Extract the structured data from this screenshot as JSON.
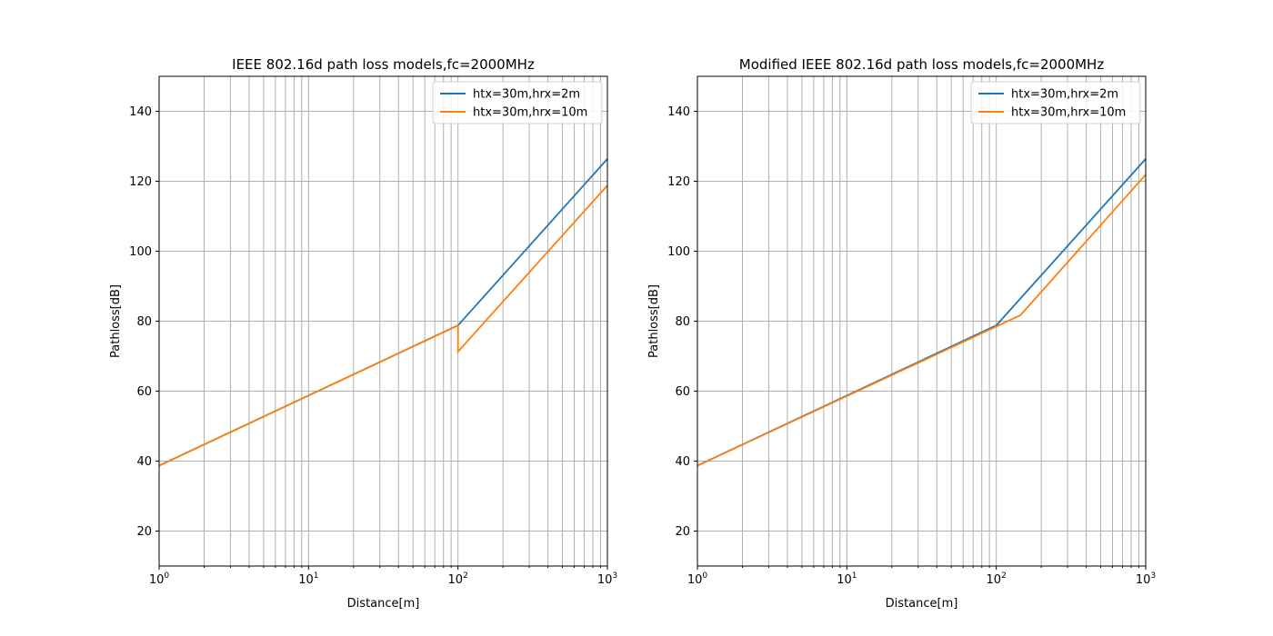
{
  "chart_data": [
    {
      "type": "line",
      "title": "IEEE 802.16d path loss models,fc=2000MHz",
      "xlabel": "Distance[m]",
      "ylabel": "Pathloss[dB]",
      "xscale": "log",
      "xlim": [
        1,
        1000
      ],
      "ylim": [
        10,
        150
      ],
      "xticks": [
        "10^0",
        "10^1",
        "10^2",
        "10^3"
      ],
      "yticks": [
        20,
        40,
        60,
        80,
        100,
        120,
        140
      ],
      "grid": true,
      "legend_position": "upper right",
      "series": [
        {
          "name": "htx=30m,hrx=2m",
          "color": "#1f77b4",
          "points": [
            [
              1,
              38.7
            ],
            [
              100,
              78.8
            ],
            [
              1000,
              126.4
            ]
          ]
        },
        {
          "name": "htx=30m,hrx=10m",
          "color": "#ff7f0e",
          "points": [
            [
              1,
              38.7
            ],
            [
              100,
              78.8
            ],
            [
              100,
              71.3
            ],
            [
              1000,
              118.8
            ]
          ]
        }
      ]
    },
    {
      "type": "line",
      "title": "Modified IEEE 802.16d path loss models,fc=2000MHz",
      "xlabel": "Distance[m]",
      "ylabel": "Pathloss[dB]",
      "xscale": "log",
      "xlim": [
        1,
        1000
      ],
      "ylim": [
        10,
        150
      ],
      "xticks": [
        "10^0",
        "10^1",
        "10^2",
        "10^3"
      ],
      "yticks": [
        20,
        40,
        60,
        80,
        100,
        120,
        140
      ],
      "grid": true,
      "legend_position": "upper right",
      "series": [
        {
          "name": "htx=30m,hrx=2m",
          "color": "#1f77b4",
          "points": [
            [
              1,
              38.7
            ],
            [
              100,
              78.8
            ],
            [
              1000,
              126.4
            ]
          ]
        },
        {
          "name": "htx=30m,hrx=10m",
          "color": "#ff7f0e",
          "points": [
            [
              1,
              38.7
            ],
            [
              145,
              81.7
            ],
            [
              1000,
              121.9
            ]
          ]
        }
      ]
    }
  ]
}
